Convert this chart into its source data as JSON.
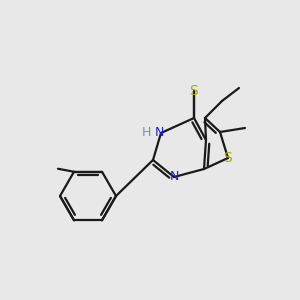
{
  "bg_color": "#e8e8e8",
  "bond_color": "#1a1a1a",
  "N_color": "#2020cc",
  "S_yellow_color": "#aaaa00",
  "S_thiol_color": "#888800",
  "H_color": "#5f9ea0",
  "figsize": [
    3.0,
    3.0
  ],
  "dpi": 100,
  "bond_lw": 1.6,
  "font_size": 9
}
